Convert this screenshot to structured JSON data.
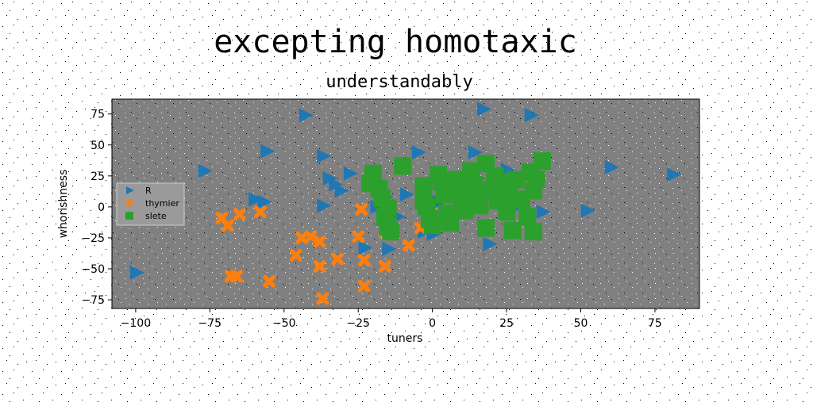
{
  "chart_data": {
    "type": "scatter",
    "title": "excepting homotaxic",
    "subtitle": "understandably",
    "xlabel": "tuners",
    "ylabel": "whorishness",
    "xlim": [
      -108,
      90
    ],
    "ylim": [
      -82,
      87
    ],
    "xticks": [
      -100,
      -75,
      -50,
      -25,
      0,
      25,
      50,
      75
    ],
    "yticks": [
      -75,
      -50,
      -25,
      0,
      25,
      50,
      75
    ],
    "xtick_labels": [
      "−100",
      "−75",
      "−50",
      "−25",
      "0",
      "25",
      "50",
      "75"
    ],
    "ytick_labels": [
      "−75",
      "−50",
      "−25",
      "0",
      "25",
      "50",
      "75"
    ],
    "legend_position": "center-left",
    "plot_background": "#808080",
    "series": [
      {
        "name": "R",
        "marker": "triangle-right",
        "color": "#1f77b4",
        "points": [
          [
            -100,
            -53
          ],
          [
            -77,
            29
          ],
          [
            -60,
            6
          ],
          [
            -57,
            4
          ],
          [
            -56,
            45
          ],
          [
            -43,
            74
          ],
          [
            -37,
            41
          ],
          [
            -37,
            1
          ],
          [
            -35,
            23
          ],
          [
            -33,
            18
          ],
          [
            -31,
            13
          ],
          [
            -28,
            27
          ],
          [
            -23,
            -33
          ],
          [
            -19,
            0
          ],
          [
            -16,
            8
          ],
          [
            -15,
            -34
          ],
          [
            -12,
            -8
          ],
          [
            -9,
            10
          ],
          [
            -5,
            44
          ],
          [
            -3,
            -20
          ],
          [
            0,
            -22
          ],
          [
            2,
            4
          ],
          [
            14,
            44
          ],
          [
            17,
            79
          ],
          [
            19,
            -30
          ],
          [
            25,
            30
          ],
          [
            28,
            0
          ],
          [
            33,
            74
          ],
          [
            37,
            -4
          ],
          [
            52,
            -3
          ],
          [
            60,
            32
          ],
          [
            81,
            26
          ]
        ]
      },
      {
        "name": "thymier",
        "marker": "x",
        "color": "#ff7f0e",
        "points": [
          [
            -71,
            -9
          ],
          [
            -69,
            -15
          ],
          [
            -66,
            -56
          ],
          [
            -68,
            -56
          ],
          [
            -65,
            -6
          ],
          [
            -58,
            -4
          ],
          [
            -55,
            -60
          ],
          [
            -46,
            -39
          ],
          [
            -44,
            -25
          ],
          [
            -41,
            -24
          ],
          [
            -38,
            -28
          ],
          [
            -38,
            -48
          ],
          [
            -37,
            -74
          ],
          [
            -32,
            -42
          ],
          [
            -25,
            -24
          ],
          [
            -23,
            -43
          ],
          [
            -23,
            -64
          ],
          [
            -24,
            -2
          ],
          [
            -16,
            -48
          ],
          [
            -16,
            -20
          ],
          [
            -8,
            -31
          ],
          [
            -4,
            -17
          ],
          [
            -2,
            -9
          ]
        ]
      },
      {
        "name": "slete",
        "marker": "square",
        "color": "#2ca02c",
        "points": [
          [
            -20,
            27
          ],
          [
            -21,
            19
          ],
          [
            -18,
            15
          ],
          [
            -17,
            7
          ],
          [
            -15,
            -1
          ],
          [
            -16,
            -8
          ],
          [
            -15,
            -16
          ],
          [
            -14,
            -20
          ],
          [
            -10,
            33
          ],
          [
            -3,
            17
          ],
          [
            -3,
            5
          ],
          [
            -2,
            0
          ],
          [
            -1,
            -10
          ],
          [
            0,
            -15
          ],
          [
            2,
            26
          ],
          [
            3,
            20
          ],
          [
            4,
            10
          ],
          [
            5,
            -5
          ],
          [
            6,
            -13
          ],
          [
            8,
            22
          ],
          [
            9,
            13
          ],
          [
            10,
            4
          ],
          [
            11,
            -3
          ],
          [
            13,
            29
          ],
          [
            14,
            18
          ],
          [
            15,
            9
          ],
          [
            16,
            1
          ],
          [
            18,
            35
          ],
          [
            18,
            -17
          ],
          [
            20,
            14
          ],
          [
            21,
            25
          ],
          [
            22,
            5
          ],
          [
            24,
            20
          ],
          [
            25,
            -4
          ],
          [
            26,
            10
          ],
          [
            27,
            -19
          ],
          [
            28,
            22
          ],
          [
            30,
            6
          ],
          [
            32,
            -8
          ],
          [
            33,
            28
          ],
          [
            34,
            13
          ],
          [
            34,
            -20
          ],
          [
            35,
            22
          ],
          [
            37,
            37
          ]
        ]
      }
    ]
  }
}
